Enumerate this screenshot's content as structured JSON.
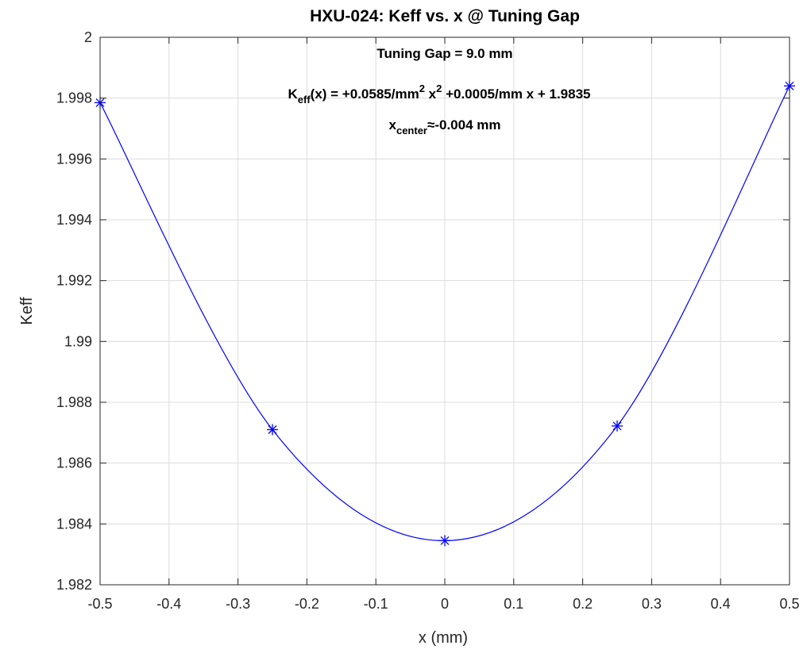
{
  "chart_data": {
    "type": "line",
    "title": "HXU-024: Keff vs. x @ Tuning Gap",
    "xlabel": "x (mm)",
    "ylabel": "Keff",
    "xlim": [
      -0.5,
      0.5
    ],
    "ylim": [
      1.982,
      2.0
    ],
    "xticks": [
      -0.5,
      -0.4,
      -0.3,
      -0.2,
      -0.1,
      0,
      0.1,
      0.2,
      0.3,
      0.4,
      0.5
    ],
    "xtick_labels": [
      "-0.5",
      "-0.4",
      "-0.3",
      "-0.2",
      "-0.1",
      "0",
      "0.1",
      "0.2",
      "0.3",
      "0.4",
      "0.5"
    ],
    "yticks": [
      1.982,
      1.984,
      1.986,
      1.988,
      1.99,
      1.992,
      1.994,
      1.996,
      1.998,
      2.0
    ],
    "ytick_labels": [
      "1.982",
      "1.984",
      "1.986",
      "1.988",
      "1.99",
      "1.992",
      "1.994",
      "1.996",
      "1.998",
      "2"
    ],
    "grid": true,
    "measured": {
      "marker": "asterisk",
      "x": [
        -0.5,
        -0.25,
        0,
        0.25,
        0.5
      ],
      "y": [
        1.99785,
        1.9871,
        1.98345,
        1.98722,
        1.9984
      ]
    },
    "fit": {
      "a": 0.0585,
      "b": 0.0005,
      "c": 1.9835
    },
    "color": "#0000ff",
    "annotations": {
      "gap": "Tuning Gap = 9.0 mm",
      "eq_K": "K",
      "eq_sub_eff": "eff",
      "eq_part1": "(x) = +0.0585/mm",
      "eq_sup1": "2",
      "eq_part2": " x",
      "eq_sup2": "2",
      "eq_part3": " +0.0005/mm x + 1.9835",
      "center_x": "x",
      "center_sub": "center",
      "center_approx": "≈-0.004 mm"
    }
  }
}
